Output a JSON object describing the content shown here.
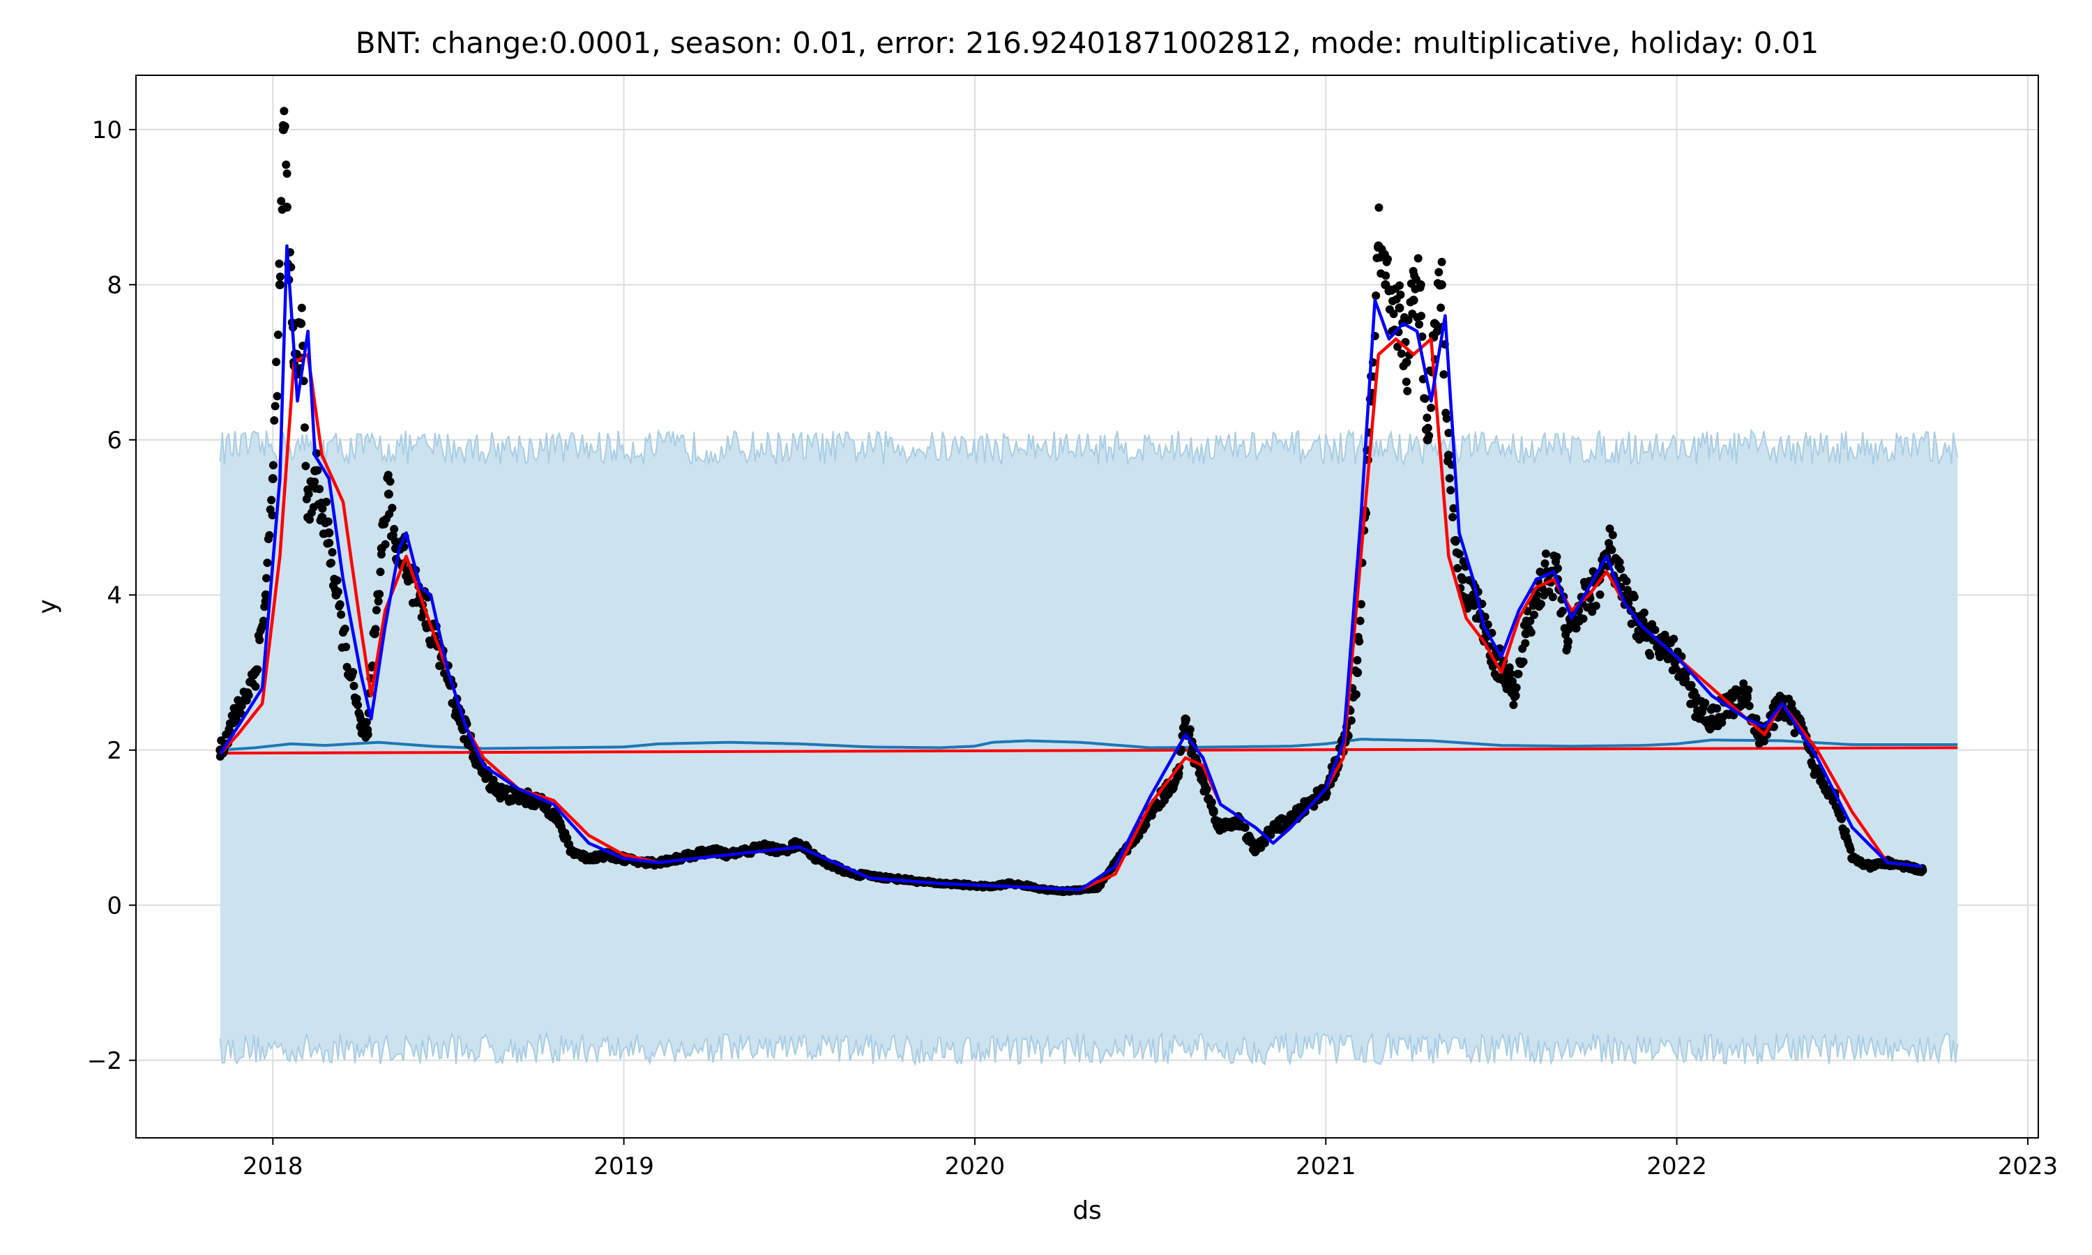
{
  "chart_data": {
    "type": "line",
    "title": "BNT: change:0.0001, season: 0.01, error: 216.92401871002812, mode: multiplicative, holiday: 0.01",
    "xlabel": "ds",
    "ylabel": "y",
    "xlim": [
      2017.61,
      2023.03
    ],
    "ylim": [
      -3.0,
      10.7
    ],
    "grid": true,
    "x_ticks": [
      2018,
      2019,
      2020,
      2021,
      2022,
      2023
    ],
    "x_tick_labels": [
      "2018",
      "2019",
      "2020",
      "2021",
      "2022",
      "2023"
    ],
    "y_ticks": [
      -2,
      0,
      2,
      4,
      6,
      8,
      10
    ],
    "y_tick_labels": [
      "−2",
      "0",
      "2",
      "4",
      "6",
      "8",
      "10"
    ],
    "colors": {
      "observed": "#000000",
      "fitted": "#0000ff",
      "smoothed": "#ff0000",
      "trend": "#ff0000",
      "forecast": "#1f77b4",
      "interval_fill": "#cde2ef",
      "interval_edge": "#a9cde4",
      "grid": "#dddddd"
    },
    "forecast_band": {
      "x_start": 2017.85,
      "x_end": 2022.8,
      "upper_mean": 5.9,
      "upper_jitter": 0.22,
      "lower_mean": -1.85,
      "lower_jitter": 0.2
    },
    "trend": {
      "x": [
        2017.85,
        2022.8
      ],
      "y": [
        1.96,
        2.03
      ]
    },
    "forecast": {
      "x": [
        2017.85,
        2017.95,
        2018.05,
        2018.15,
        2018.3,
        2018.45,
        2018.6,
        2018.8,
        2019.0,
        2019.1,
        2019.3,
        2019.5,
        2019.7,
        2019.9,
        2020.0,
        2020.05,
        2020.15,
        2020.3,
        2020.5,
        2020.7,
        2020.9,
        2021.0,
        2021.1,
        2021.3,
        2021.5,
        2021.7,
        2021.9,
        2022.0,
        2022.1,
        2022.3,
        2022.5,
        2022.8
      ],
      "y": [
        2.0,
        2.03,
        2.08,
        2.06,
        2.1,
        2.05,
        2.02,
        2.03,
        2.04,
        2.08,
        2.1,
        2.08,
        2.04,
        2.03,
        2.05,
        2.1,
        2.12,
        2.1,
        2.03,
        2.04,
        2.05,
        2.08,
        2.14,
        2.12,
        2.06,
        2.05,
        2.06,
        2.08,
        2.13,
        2.12,
        2.07,
        2.07
      ]
    },
    "smoothed": {
      "x": [
        2017.85,
        2017.9,
        2017.97,
        2018.02,
        2018.06,
        2018.1,
        2018.14,
        2018.2,
        2018.25,
        2018.28,
        2018.32,
        2018.38,
        2018.45,
        2018.5,
        2018.55,
        2018.6,
        2018.7,
        2018.8,
        2018.9,
        2019.0,
        2019.1,
        2019.3,
        2019.5,
        2019.7,
        2019.9,
        2020.1,
        2020.2,
        2020.3,
        2020.4,
        2020.5,
        2020.6,
        2020.65,
        2020.7,
        2020.8,
        2020.85,
        2020.9,
        2021.0,
        2021.05,
        2021.1,
        2021.15,
        2021.2,
        2021.25,
        2021.3,
        2021.35,
        2021.4,
        2021.45,
        2021.5,
        2021.55,
        2021.6,
        2021.65,
        2021.7,
        2021.75,
        2021.8,
        2021.85,
        2021.9,
        2022.0,
        2022.1,
        2022.2,
        2022.25,
        2022.3,
        2022.4,
        2022.5,
        2022.6,
        2022.7
      ],
      "y": [
        1.95,
        2.2,
        2.6,
        4.5,
        7.0,
        7.1,
        5.8,
        5.2,
        3.6,
        2.7,
        3.8,
        4.5,
        3.6,
        3.0,
        2.3,
        1.9,
        1.5,
        1.35,
        0.9,
        0.65,
        0.55,
        0.65,
        0.75,
        0.35,
        0.28,
        0.24,
        0.22,
        0.2,
        0.4,
        1.3,
        1.9,
        1.8,
        1.3,
        1.0,
        0.8,
        1.0,
        1.5,
        1.9,
        4.5,
        7.1,
        7.3,
        7.1,
        7.3,
        4.5,
        3.7,
        3.4,
        3.0,
        3.7,
        4.1,
        4.2,
        3.8,
        4.0,
        4.3,
        3.9,
        3.6,
        3.2,
        2.8,
        2.4,
        2.2,
        2.6,
        2.0,
        1.2,
        0.55,
        0.5
      ]
    },
    "fitted": {
      "x": [
        2017.85,
        2017.9,
        2017.97,
        2018.02,
        2018.04,
        2018.07,
        2018.1,
        2018.12,
        2018.16,
        2018.2,
        2018.25,
        2018.28,
        2018.32,
        2018.36,
        2018.38,
        2018.42,
        2018.45,
        2018.5,
        2018.55,
        2018.6,
        2018.7,
        2018.8,
        2018.9,
        2019.0,
        2019.1,
        2019.3,
        2019.5,
        2019.7,
        2019.9,
        2020.1,
        2020.2,
        2020.3,
        2020.4,
        2020.5,
        2020.6,
        2020.65,
        2020.7,
        2020.8,
        2020.85,
        2020.9,
        2021.0,
        2021.05,
        2021.1,
        2021.14,
        2021.18,
        2021.22,
        2021.26,
        2021.3,
        2021.34,
        2021.38,
        2021.42,
        2021.45,
        2021.5,
        2021.55,
        2021.6,
        2021.65,
        2021.7,
        2021.75,
        2021.8,
        2021.85,
        2021.9,
        2022.0,
        2022.1,
        2022.2,
        2022.25,
        2022.3,
        2022.4,
        2022.5,
        2022.6,
        2022.7
      ],
      "y": [
        1.95,
        2.3,
        2.8,
        5.5,
        8.5,
        6.5,
        7.4,
        5.8,
        5.5,
        4.2,
        3.0,
        2.4,
        3.6,
        4.6,
        4.8,
        4.1,
        4.0,
        3.0,
        2.3,
        1.8,
        1.5,
        1.3,
        0.8,
        0.6,
        0.55,
        0.65,
        0.75,
        0.35,
        0.28,
        0.24,
        0.22,
        0.2,
        0.5,
        1.4,
        2.2,
        1.9,
        1.3,
        1.0,
        0.8,
        1.0,
        1.5,
        2.1,
        5.0,
        7.8,
        7.3,
        7.5,
        7.4,
        6.5,
        7.6,
        4.8,
        4.2,
        3.6,
        3.2,
        3.8,
        4.2,
        4.3,
        3.7,
        4.1,
        4.5,
        3.9,
        3.6,
        3.2,
        2.7,
        2.4,
        2.3,
        2.6,
        1.9,
        1.0,
        0.55,
        0.5
      ]
    },
    "observed": {
      "x": [
        2017.85,
        2017.9,
        2017.95,
        2017.98,
        2018.0,
        2018.02,
        2018.03,
        2018.04,
        2018.06,
        2018.08,
        2018.1,
        2018.12,
        2018.14,
        2018.16,
        2018.18,
        2018.22,
        2018.25,
        2018.27,
        2018.29,
        2018.31,
        2018.33,
        2018.35,
        2018.37,
        2018.39,
        2018.42,
        2018.45,
        2018.48,
        2018.52,
        2018.56,
        2018.6,
        2018.65,
        2018.7,
        2018.75,
        2018.8,
        2018.85,
        2018.9,
        2018.95,
        2019.0,
        2019.05,
        2019.1,
        2019.15,
        2019.2,
        2019.25,
        2019.3,
        2019.35,
        2019.4,
        2019.45,
        2019.5,
        2019.55,
        2019.6,
        2019.65,
        2019.7,
        2019.75,
        2019.8,
        2019.85,
        2019.9,
        2019.95,
        2020.0,
        2020.05,
        2020.1,
        2020.15,
        2020.2,
        2020.25,
        2020.3,
        2020.35,
        2020.4,
        2020.45,
        2020.5,
        2020.55,
        2020.58,
        2020.6,
        2020.62,
        2020.65,
        2020.68,
        2020.7,
        2020.75,
        2020.8,
        2020.85,
        2020.9,
        2020.95,
        2021.0,
        2021.03,
        2021.06,
        2021.09,
        2021.11,
        2021.13,
        2021.15,
        2021.17,
        2021.19,
        2021.21,
        2021.23,
        2021.25,
        2021.27,
        2021.29,
        2021.31,
        2021.33,
        2021.35,
        2021.37,
        2021.39,
        2021.42,
        2021.45,
        2021.48,
        2021.51,
        2021.54,
        2021.57,
        2021.6,
        2021.63,
        2021.66,
        2021.69,
        2021.72,
        2021.75,
        2021.78,
        2021.81,
        2021.84,
        2021.87,
        2021.9,
        2021.95,
        2022.0,
        2022.05,
        2022.1,
        2022.15,
        2022.2,
        2022.23,
        2022.26,
        2022.3,
        2022.35,
        2022.4,
        2022.45,
        2022.5,
        2022.55,
        2022.6,
        2022.65,
        2022.7
      ],
      "y": [
        2.0,
        2.5,
        3.0,
        4.0,
        5.5,
        8.0,
        10.0,
        9.0,
        7.0,
        7.5,
        5.0,
        5.6,
        5.0,
        4.8,
        4.0,
        3.0,
        2.3,
        2.2,
        3.5,
        4.6,
        5.3,
        4.6,
        4.7,
        4.2,
        4.0,
        3.6,
        3.2,
        2.6,
        2.1,
        1.7,
        1.45,
        1.4,
        1.35,
        1.2,
        0.7,
        0.6,
        0.65,
        0.6,
        0.55,
        0.55,
        0.6,
        0.65,
        0.7,
        0.65,
        0.7,
        0.75,
        0.7,
        0.8,
        0.6,
        0.5,
        0.4,
        0.38,
        0.35,
        0.33,
        0.3,
        0.28,
        0.27,
        0.25,
        0.24,
        0.28,
        0.25,
        0.2,
        0.18,
        0.2,
        0.22,
        0.55,
        0.8,
        1.2,
        1.5,
        1.7,
        2.4,
        2.0,
        1.6,
        1.2,
        1.0,
        1.1,
        0.7,
        1.0,
        1.1,
        1.3,
        1.5,
        1.8,
        2.2,
        3.0,
        5.0,
        6.5,
        8.5,
        8.0,
        7.4,
        7.7,
        7.0,
        7.8,
        8.0,
        6.0,
        7.5,
        8.0,
        5.8,
        4.7,
        4.2,
        4.0,
        3.6,
        3.2,
        3.0,
        2.7,
        3.5,
        4.0,
        4.3,
        4.2,
        3.4,
        3.8,
        4.0,
        4.2,
        4.6,
        4.1,
        3.8,
        3.6,
        3.3,
        3.2,
        2.6,
        2.4,
        2.6,
        2.7,
        2.2,
        2.3,
        2.6,
        2.3,
        1.7,
        1.4,
        0.6,
        0.5,
        0.55,
        0.5,
        0.45
      ]
    }
  }
}
